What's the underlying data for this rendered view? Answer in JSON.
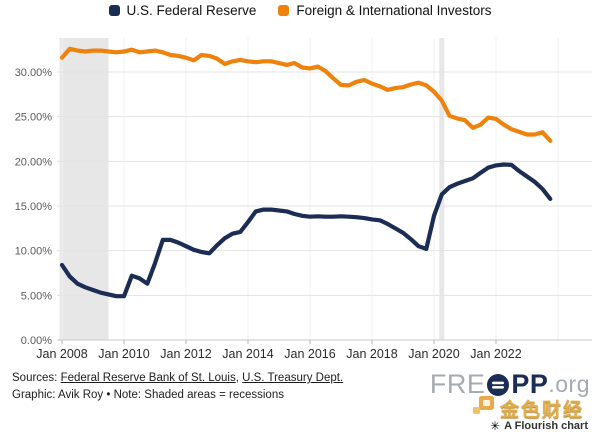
{
  "chart_data": {
    "type": "line",
    "title": "",
    "legend_position": "top-center",
    "grid": "horizontal major gridlines; faint vertical gridlines every 2 years",
    "x": [
      2008.0,
      2008.25,
      2008.5,
      2008.75,
      2009.0,
      2009.25,
      2009.5,
      2009.75,
      2010.0,
      2010.25,
      2010.5,
      2010.75,
      2011.0,
      2011.25,
      2011.5,
      2011.75,
      2012.0,
      2012.25,
      2012.5,
      2012.75,
      2013.0,
      2013.25,
      2013.5,
      2013.75,
      2014.0,
      2014.25,
      2014.5,
      2014.75,
      2015.0,
      2015.25,
      2015.5,
      2015.75,
      2016.0,
      2016.25,
      2016.5,
      2016.75,
      2017.0,
      2017.25,
      2017.5,
      2017.75,
      2018.0,
      2018.25,
      2018.5,
      2018.75,
      2019.0,
      2019.25,
      2019.5,
      2019.75,
      2020.0,
      2020.25,
      2020.5,
      2020.75,
      2021.0,
      2021.25,
      2021.5,
      2021.75,
      2022.0,
      2022.25,
      2022.5,
      2022.75,
      2023.0,
      2023.25,
      2023.5,
      2023.75
    ],
    "x_ticks": [
      {
        "year": 2008,
        "label": "Jan 2008"
      },
      {
        "year": 2010,
        "label": "Jan 2010"
      },
      {
        "year": 2012,
        "label": "Jan 2012"
      },
      {
        "year": 2014,
        "label": "Jan 2014"
      },
      {
        "year": 2016,
        "label": "Jan 2016"
      },
      {
        "year": 2018,
        "label": "Jan 2018"
      },
      {
        "year": 2020,
        "label": "Jan 2020"
      },
      {
        "year": 2022,
        "label": "Jan 2022"
      }
    ],
    "y_ticks": [
      0,
      5,
      10,
      15,
      20,
      25,
      30
    ],
    "y_tick_labels": [
      "0.00%",
      "5.00%",
      "10.00%",
      "15.00%",
      "20.00%",
      "25.00%",
      "30.00%"
    ],
    "ylim": [
      0,
      33.8
    ],
    "series": [
      {
        "name": "U.S. Federal Reserve",
        "color": "#1b2c55",
        "values": [
          8.4,
          7.1,
          6.3,
          5.9,
          5.6,
          5.3,
          5.1,
          4.9,
          4.9,
          7.2,
          6.9,
          6.3,
          8.6,
          11.2,
          11.2,
          10.9,
          10.5,
          10.1,
          9.85,
          9.7,
          10.6,
          11.4,
          11.9,
          12.1,
          13.2,
          14.4,
          14.6,
          14.6,
          14.5,
          14.4,
          14.1,
          13.9,
          13.8,
          13.85,
          13.8,
          13.8,
          13.85,
          13.8,
          13.75,
          13.65,
          13.5,
          13.4,
          13.0,
          12.5,
          12.0,
          11.3,
          10.5,
          10.2,
          13.9,
          16.3,
          17.1,
          17.5,
          17.8,
          18.1,
          18.7,
          19.3,
          19.55,
          19.65,
          19.6,
          18.9,
          18.3,
          17.7,
          16.9,
          15.8
        ]
      },
      {
        "name": "Foreign & International Investors",
        "color": "#ef820d",
        "values": [
          31.6,
          32.6,
          32.4,
          32.3,
          32.4,
          32.4,
          32.3,
          32.2,
          32.3,
          32.5,
          32.2,
          32.3,
          32.4,
          32.2,
          31.9,
          31.8,
          31.6,
          31.3,
          31.9,
          31.8,
          31.5,
          30.9,
          31.2,
          31.35,
          31.2,
          31.1,
          31.2,
          31.2,
          31.0,
          30.8,
          31.0,
          30.5,
          30.4,
          30.6,
          30.1,
          29.3,
          28.55,
          28.5,
          28.9,
          29.1,
          28.7,
          28.4,
          28.0,
          28.2,
          28.3,
          28.6,
          28.8,
          28.5,
          27.8,
          26.8,
          25.1,
          24.8,
          24.6,
          23.75,
          24.1,
          24.9,
          24.75,
          24.1,
          23.6,
          23.3,
          23.0,
          23.0,
          23.25,
          22.3
        ]
      }
    ],
    "recessions": [
      {
        "from": 2007.92,
        "to": 2009.5
      },
      {
        "from": 2020.17,
        "to": 2020.33
      }
    ],
    "recession_color": "#e7e7e7"
  },
  "footer": {
    "sources_label": "Sources:",
    "links": [
      {
        "text": "Federal Reserve Bank of St. Louis"
      },
      {
        "text": "U.S. Treasury Dept."
      }
    ],
    "separator": ", ",
    "graphic_note": "Graphic: Avik Roy • Note: Shaded areas = recessions"
  },
  "branding": {
    "freopp_fre": "FRE",
    "freopp_pp": "PP",
    "freopp_org": ".org",
    "watermark_text": "金色财经",
    "flourish_icon": "✳",
    "flourish_label": "A Flourish chart"
  }
}
